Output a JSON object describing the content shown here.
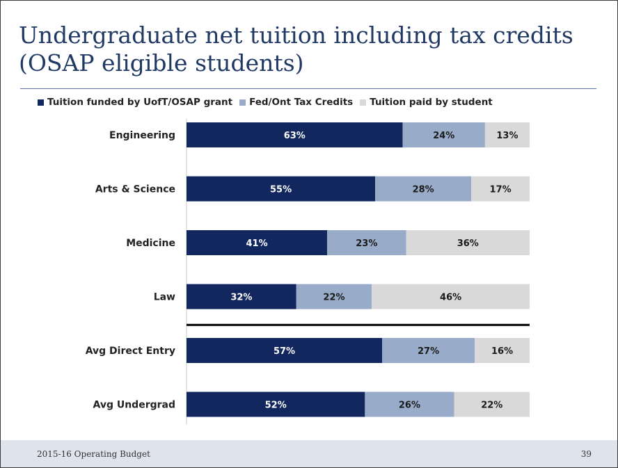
{
  "slide": {
    "title_line1": "Undergraduate net tuition including tax credits",
    "title_line2": "(OSAP eligible students)",
    "footer_left": "2015-16 Operating Budget",
    "footer_right": "39"
  },
  "chart_data": {
    "type": "bar",
    "orientation": "horizontal",
    "stacked": true,
    "unit": "%",
    "categories": [
      "Engineering",
      "Arts & Science",
      "Medicine",
      "Law",
      "Avg Direct Entry",
      "Avg Undergrad"
    ],
    "series": [
      {
        "name": "Tuition funded by UofT/OSAP grant",
        "color": "#12275e",
        "label_color": "#ffffff",
        "values": [
          63,
          55,
          41,
          32,
          57,
          52
        ]
      },
      {
        "name": "Fed/Ont Tax Credits",
        "color": "#98acc9",
        "label_color": "#1a1a1a",
        "values": [
          24,
          28,
          23,
          22,
          27,
          26
        ]
      },
      {
        "name": "Tuition paid by student",
        "color": "#d9d9d9",
        "label_color": "#1a1a1a",
        "values": [
          13,
          17,
          36,
          46,
          16,
          22
        ]
      }
    ],
    "xlim": [
      0,
      100
    ],
    "grid": false,
    "legend_position": "top",
    "separator_after_category": "Law"
  }
}
